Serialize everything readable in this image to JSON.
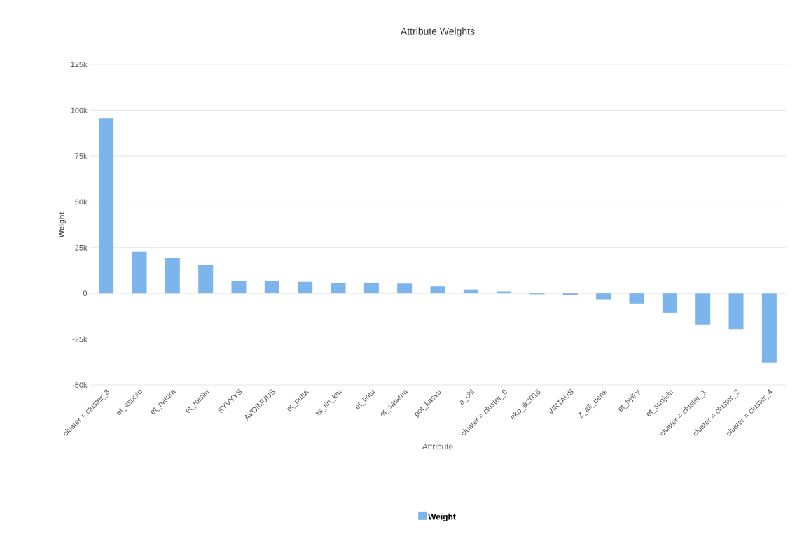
{
  "chart_data": {
    "type": "bar",
    "title": "Attribute Weights",
    "xlabel": "Attribute",
    "ylabel": "Weight",
    "categories": [
      "cluster = cluster_3",
      "et_asunto",
      "et_natura",
      "et_toisiin",
      "SYVYYS",
      "AVOIMUUS",
      "et_riutta",
      "as_tih_km",
      "et_lintu",
      "et_satama",
      "pot_kasvu",
      "a_chl",
      "cluster = cluster_0",
      "eko_lk2016",
      "VIRTAUS",
      "Z_all_dens",
      "et_hylky",
      "et_suojelu",
      "cluster = cluster_1",
      "cluster = cluster_2",
      "cluster = cluster_4"
    ],
    "series": [
      {
        "name": "Weight",
        "color": "#7cb5ec",
        "values": [
          95500,
          22700,
          19400,
          15400,
          6900,
          6900,
          6300,
          5800,
          5800,
          5300,
          3800,
          2100,
          1000,
          -500,
          -1100,
          -3200,
          -5600,
          -10600,
          -17000,
          -19500,
          -37700
        ]
      }
    ],
    "ylim": [
      -50000,
      125000
    ],
    "yticks": [
      {
        "value": -50000,
        "label": "-50k"
      },
      {
        "value": -25000,
        "label": "-25k"
      },
      0,
      {
        "value": 25000,
        "label": "25k"
      },
      {
        "value": 50000,
        "label": "50k"
      },
      {
        "value": 75000,
        "label": "75k"
      },
      {
        "value": 100000,
        "label": "100k"
      },
      {
        "value": 125000,
        "label": "125k"
      }
    ],
    "grid": "y",
    "legend": "bottom"
  }
}
